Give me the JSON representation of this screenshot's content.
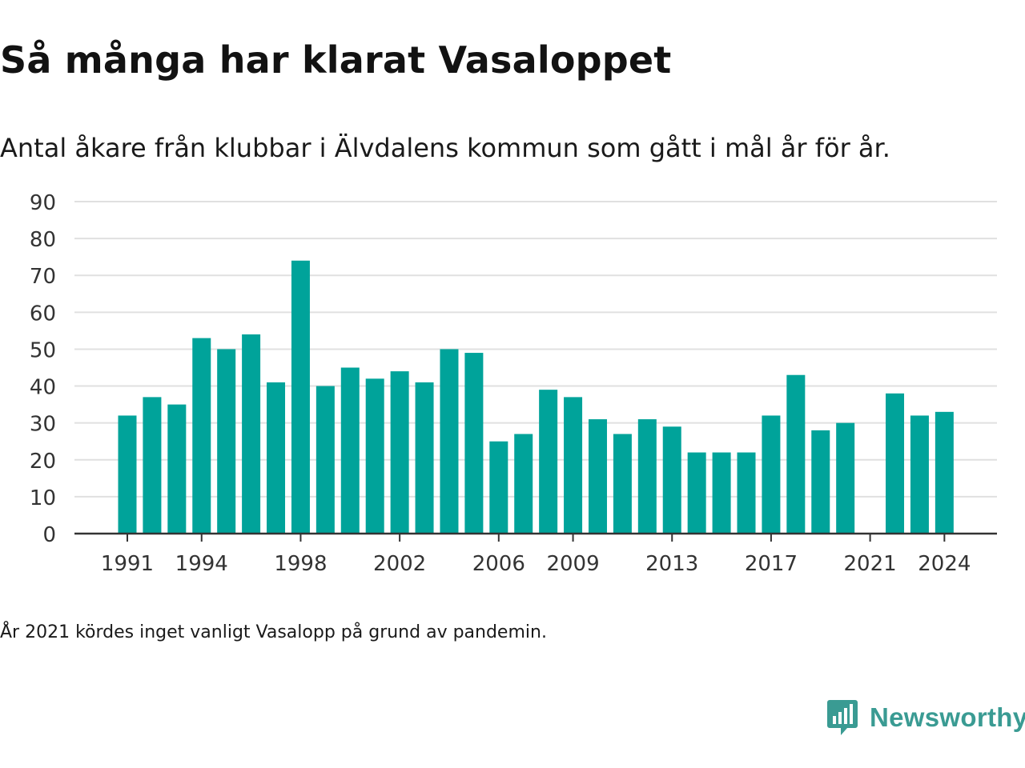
{
  "title": "Så många har klarat Vasaloppet",
  "subtitle": "Antal åkare från klubbar i Älvdalens kommun som gått i mål år för år.",
  "footnote": "År 2021 kördes inget vanligt Vasalopp på grund av pandemin.",
  "brand": {
    "name": "Newsworthy",
    "icon": "newsworthy-logo-icon",
    "color": "#3a9b93"
  },
  "colors": {
    "bar": "#00a39a",
    "grid": "#e0e0e0",
    "axis": "#333333"
  },
  "chart_data": {
    "type": "bar",
    "title": "Så många har klarat Vasaloppet",
    "xlabel": "",
    "ylabel": "",
    "categories": [
      "1991",
      "1992",
      "1993",
      "1994",
      "1995",
      "1996",
      "1997",
      "1998",
      "1999",
      "2000",
      "2001",
      "2002",
      "2003",
      "2004",
      "2005",
      "2006",
      "2007",
      "2008",
      "2009",
      "2010",
      "2011",
      "2012",
      "2013",
      "2014",
      "2015",
      "2016",
      "2017",
      "2018",
      "2019",
      "2020",
      "2021",
      "2022",
      "2023",
      "2024"
    ],
    "values": [
      32,
      37,
      35,
      53,
      50,
      54,
      41,
      74,
      40,
      45,
      42,
      44,
      41,
      50,
      49,
      25,
      27,
      39,
      37,
      31,
      27,
      31,
      29,
      22,
      22,
      22,
      32,
      43,
      28,
      30,
      null,
      38,
      32,
      33
    ],
    "x_tick_labels": [
      "1991",
      "1994",
      "1998",
      "2002",
      "2006",
      "2009",
      "2013",
      "2017",
      "2021",
      "2024"
    ],
    "y_ticks": [
      0,
      10,
      20,
      30,
      40,
      50,
      60,
      70,
      80,
      90
    ],
    "ylim": [
      0,
      90
    ],
    "grid": true,
    "legend": "none"
  }
}
